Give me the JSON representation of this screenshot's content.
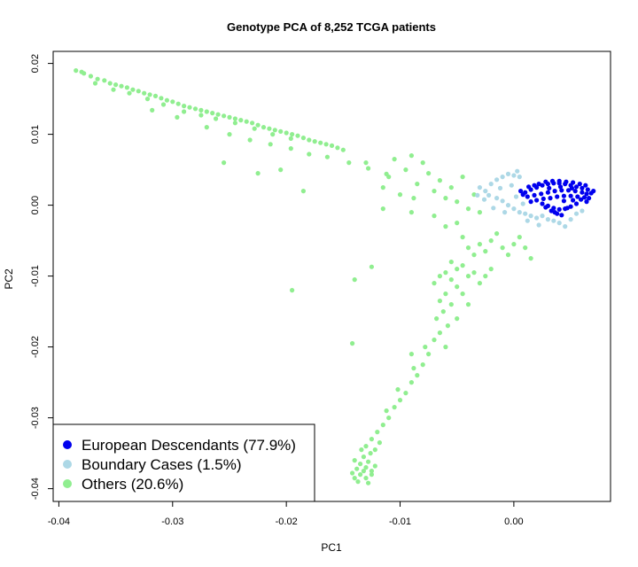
{
  "chart_data": {
    "type": "scatter",
    "title": "Genotype PCA of 8,252 TCGA patients",
    "xlabel": "PC1",
    "ylabel": "PC2",
    "xlim": [
      -0.0405,
      0.0085
    ],
    "ylim": [
      -0.0418,
      0.0217
    ],
    "x_ticks": [
      -0.04,
      -0.03,
      -0.02,
      -0.01,
      0.0
    ],
    "x_tick_labels": [
      "-0.04",
      "-0.03",
      "-0.02",
      "-0.01",
      "0.00"
    ],
    "y_ticks": [
      -0.04,
      -0.03,
      -0.02,
      -0.01,
      0.0,
      0.01,
      0.02
    ],
    "y_tick_labels": [
      "-0.04",
      "-0.03",
      "-0.02",
      "-0.01",
      "0.00",
      "0.01",
      "0.02"
    ],
    "grid": false,
    "legend_position": "bottom-left",
    "series": [
      {
        "name": "European Descendants (77.9%)",
        "color": "#0000EE",
        "points": [
          [
            0.001,
            0.0018
          ],
          [
            0.0015,
            0.0022
          ],
          [
            0.002,
            0.0025
          ],
          [
            0.0025,
            0.0028
          ],
          [
            0.003,
            0.003
          ],
          [
            0.0035,
            0.0031
          ],
          [
            0.004,
            0.0031
          ],
          [
            0.0045,
            0.003
          ],
          [
            0.005,
            0.0028
          ],
          [
            0.0055,
            0.0026
          ],
          [
            0.006,
            0.0024
          ],
          [
            0.0065,
            0.0022
          ],
          [
            0.0012,
            0.0012
          ],
          [
            0.0018,
            0.0014
          ],
          [
            0.0024,
            0.0016
          ],
          [
            0.003,
            0.0018
          ],
          [
            0.0036,
            0.002
          ],
          [
            0.0042,
            0.0021
          ],
          [
            0.0048,
            0.0021
          ],
          [
            0.0054,
            0.002
          ],
          [
            0.006,
            0.0018
          ],
          [
            0.0064,
            0.0016
          ],
          [
            0.0068,
            0.0017
          ],
          [
            0.007,
            0.002
          ],
          [
            0.0015,
            0.0005
          ],
          [
            0.002,
            0.0007
          ],
          [
            0.0026,
            0.0009
          ],
          [
            0.0032,
            0.001
          ],
          [
            0.0038,
            0.0012
          ],
          [
            0.0044,
            0.0013
          ],
          [
            0.005,
            0.0013
          ],
          [
            0.0056,
            0.0012
          ],
          [
            0.0062,
            0.0011
          ],
          [
            0.0066,
            0.001
          ],
          [
            0.0008,
            0.0015
          ],
          [
            0.0006,
            0.002
          ],
          [
            0.0025,
            0.0002
          ],
          [
            0.003,
            -0.0001
          ],
          [
            0.0035,
            -0.0004
          ],
          [
            0.004,
            -0.0006
          ],
          [
            0.0045,
            -0.0005
          ],
          [
            0.005,
            -0.0002
          ],
          [
            0.0055,
            0.0002
          ],
          [
            0.0033,
            -0.0008
          ],
          [
            0.0038,
            -0.0012
          ],
          [
            0.0042,
            -0.0014
          ],
          [
            0.0036,
            -0.001
          ],
          [
            0.0028,
            -0.0003
          ],
          [
            0.0022,
            0.003
          ],
          [
            0.0028,
            0.0033
          ],
          [
            0.0034,
            0.0034
          ],
          [
            0.004,
            0.0034
          ],
          [
            0.0046,
            0.0033
          ],
          [
            0.0052,
            0.0032
          ],
          [
            0.0058,
            0.003
          ],
          [
            0.0063,
            0.0028
          ],
          [
            0.0018,
            0.0028
          ],
          [
            0.0013,
            0.0026
          ],
          [
            0.0044,
            0.0006
          ],
          [
            0.0052,
            0.0007
          ],
          [
            0.0059,
            0.0008
          ],
          [
            0.0064,
            0.0005
          ],
          [
            0.0047,
            -0.0004
          ],
          [
            0.0031,
            0.0024
          ],
          [
            0.0041,
            0.0026
          ],
          [
            0.0051,
            0.0024
          ]
        ]
      },
      {
        "name": "Boundary Cases (1.5%)",
        "color": "#ADD8E6",
        "points": [
          [
            -0.0025,
            0.002
          ],
          [
            -0.002,
            0.003
          ],
          [
            -0.0015,
            0.0036
          ],
          [
            -0.001,
            0.004
          ],
          [
            -0.0005,
            0.0044
          ],
          [
            0.0,
            0.0042
          ],
          [
            0.0005,
            0.004
          ],
          [
            -0.003,
            0.0025
          ],
          [
            -0.0022,
            0.0014
          ],
          [
            -0.0015,
            0.001
          ],
          [
            -0.001,
            0.0006
          ],
          [
            -0.0005,
            0.0
          ],
          [
            0.0,
            -0.0005
          ],
          [
            0.0005,
            -0.001
          ],
          [
            0.001,
            -0.0012
          ],
          [
            0.0015,
            -0.0015
          ],
          [
            0.002,
            -0.0018
          ],
          [
            0.0025,
            -0.0015
          ],
          [
            0.003,
            -0.002
          ],
          [
            0.0035,
            -0.0022
          ],
          [
            0.004,
            -0.0025
          ],
          [
            0.0045,
            -0.003
          ],
          [
            0.005,
            -0.002
          ],
          [
            0.0055,
            -0.0012
          ],
          [
            0.006,
            -0.0008
          ],
          [
            -0.0012,
            0.0024
          ],
          [
            -0.0002,
            0.0028
          ],
          [
            0.0002,
            0.0012
          ],
          [
            -0.0018,
            -0.0004
          ],
          [
            -0.0008,
            -0.001
          ],
          [
            0.0008,
            0.0002
          ],
          [
            -0.0026,
            0.0008
          ],
          [
            0.0012,
            -0.0022
          ],
          [
            0.0022,
            -0.0028
          ],
          [
            0.0003,
            0.0048
          ],
          [
            -0.0032,
            0.0014
          ]
        ]
      },
      {
        "name": "Others (20.6%)",
        "color": "#90EE90",
        "points": [
          [
            -0.0385,
            0.019
          ],
          [
            -0.038,
            0.0188
          ],
          [
            -0.0378,
            0.0186
          ],
          [
            -0.0372,
            0.0182
          ],
          [
            -0.0366,
            0.0178
          ],
          [
            -0.036,
            0.0176
          ],
          [
            -0.0355,
            0.0172
          ],
          [
            -0.035,
            0.017
          ],
          [
            -0.0345,
            0.0168
          ],
          [
            -0.034,
            0.0166
          ],
          [
            -0.0335,
            0.0163
          ],
          [
            -0.033,
            0.0161
          ],
          [
            -0.0325,
            0.0158
          ],
          [
            -0.032,
            0.0156
          ],
          [
            -0.0315,
            0.0154
          ],
          [
            -0.031,
            0.0151
          ],
          [
            -0.0305,
            0.0148
          ],
          [
            -0.03,
            0.0146
          ],
          [
            -0.0295,
            0.0143
          ],
          [
            -0.029,
            0.014
          ],
          [
            -0.0285,
            0.0138
          ],
          [
            -0.028,
            0.0136
          ],
          [
            -0.0275,
            0.0134
          ],
          [
            -0.027,
            0.0132
          ],
          [
            -0.0265,
            0.013
          ],
          [
            -0.026,
            0.0128
          ],
          [
            -0.0255,
            0.0126
          ],
          [
            -0.025,
            0.0124
          ],
          [
            -0.0245,
            0.0122
          ],
          [
            -0.024,
            0.012
          ],
          [
            -0.0235,
            0.0118
          ],
          [
            -0.023,
            0.0116
          ],
          [
            -0.0225,
            0.0113
          ],
          [
            -0.022,
            0.011
          ],
          [
            -0.0215,
            0.0108
          ],
          [
            -0.021,
            0.0106
          ],
          [
            -0.0205,
            0.0104
          ],
          [
            -0.02,
            0.0102
          ],
          [
            -0.0195,
            0.01
          ],
          [
            -0.019,
            0.0098
          ],
          [
            -0.0185,
            0.0095
          ],
          [
            -0.018,
            0.0092
          ],
          [
            -0.0175,
            0.009
          ],
          [
            -0.017,
            0.0088
          ],
          [
            -0.0165,
            0.0086
          ],
          [
            -0.016,
            0.0084
          ],
          [
            -0.0155,
            0.0081
          ],
          [
            -0.015,
            0.0078
          ],
          [
            -0.0368,
            0.0172
          ],
          [
            -0.0352,
            0.0163
          ],
          [
            -0.0338,
            0.0158
          ],
          [
            -0.0322,
            0.015
          ],
          [
            -0.0308,
            0.0142
          ],
          [
            -0.029,
            0.0132
          ],
          [
            -0.0275,
            0.0127
          ],
          [
            -0.0262,
            0.0122
          ],
          [
            -0.0245,
            0.0116
          ],
          [
            -0.0228,
            0.0108
          ],
          [
            -0.0212,
            0.01
          ],
          [
            -0.0196,
            0.0094
          ],
          [
            -0.0318,
            0.0134
          ],
          [
            -0.0296,
            0.0124
          ],
          [
            -0.027,
            0.011
          ],
          [
            -0.025,
            0.01
          ],
          [
            -0.0232,
            0.0092
          ],
          [
            -0.0214,
            0.0086
          ],
          [
            -0.0196,
            0.008
          ],
          [
            -0.018,
            0.0072
          ],
          [
            -0.0164,
            0.0068
          ],
          [
            -0.0145,
            0.006
          ],
          [
            -0.0128,
            0.0052
          ],
          [
            -0.0112,
            0.0044
          ],
          [
            -0.0205,
            0.005
          ],
          [
            -0.0225,
            0.0045
          ],
          [
            -0.0255,
            0.006
          ],
          [
            -0.0185,
            0.002
          ],
          [
            -0.0195,
            -0.012
          ],
          [
            -0.014,
            -0.0105
          ],
          [
            -0.0125,
            -0.0087
          ],
          [
            -0.013,
            0.006
          ],
          [
            -0.011,
            0.004
          ],
          [
            -0.0095,
            0.005
          ],
          [
            -0.0085,
            0.003
          ],
          [
            -0.0075,
            0.0045
          ],
          [
            -0.007,
            0.002
          ],
          [
            -0.0065,
            0.0035
          ],
          [
            -0.006,
            0.001
          ],
          [
            -0.0055,
            0.0025
          ],
          [
            -0.005,
            0.0005
          ],
          [
            -0.0045,
            0.004
          ],
          [
            -0.004,
            -0.0005
          ],
          [
            -0.0035,
            0.0015
          ],
          [
            -0.003,
            -0.001
          ],
          [
            -0.0105,
            0.0065
          ],
          [
            -0.009,
            0.007
          ],
          [
            -0.008,
            0.006
          ],
          [
            -0.0115,
            0.0025
          ],
          [
            -0.01,
            0.0015
          ],
          [
            -0.0088,
            0.001
          ],
          [
            -0.0115,
            -0.0005
          ],
          [
            -0.009,
            -0.001
          ],
          [
            -0.007,
            -0.0015
          ],
          [
            -0.006,
            -0.003
          ],
          [
            -0.005,
            -0.0025
          ],
          [
            -0.0045,
            -0.0045
          ],
          [
            -0.004,
            -0.006
          ],
          [
            -0.0035,
            -0.007
          ],
          [
            -0.003,
            -0.0055
          ],
          [
            -0.0025,
            -0.0065
          ],
          [
            -0.002,
            -0.005
          ],
          [
            -0.0015,
            -0.004
          ],
          [
            -0.001,
            -0.006
          ],
          [
            -0.0005,
            -0.007
          ],
          [
            0.0,
            -0.0055
          ],
          [
            0.0005,
            -0.0045
          ],
          [
            0.001,
            -0.006
          ],
          [
            0.0015,
            -0.0075
          ],
          [
            -0.0055,
            -0.008
          ],
          [
            -0.005,
            -0.009
          ],
          [
            -0.0045,
            -0.0085
          ],
          [
            -0.006,
            -0.0095
          ],
          [
            -0.0055,
            -0.0105
          ],
          [
            -0.005,
            -0.0115
          ],
          [
            -0.006,
            -0.0125
          ],
          [
            -0.0065,
            -0.0135
          ],
          [
            -0.007,
            -0.011
          ],
          [
            -0.0065,
            -0.01
          ],
          [
            -0.004,
            -0.01
          ],
          [
            -0.0035,
            -0.0095
          ],
          [
            -0.0045,
            -0.0125
          ],
          [
            -0.0055,
            -0.014
          ],
          [
            -0.0062,
            -0.015
          ],
          [
            -0.0068,
            -0.016
          ],
          [
            -0.005,
            -0.016
          ],
          [
            -0.004,
            -0.014
          ],
          [
            -0.003,
            -0.011
          ],
          [
            -0.0058,
            -0.017
          ],
          [
            -0.0065,
            -0.018
          ],
          [
            -0.007,
            -0.019
          ],
          [
            -0.006,
            -0.02
          ],
          [
            -0.0075,
            -0.021
          ],
          [
            -0.008,
            -0.0225
          ],
          [
            -0.0085,
            -0.024
          ],
          [
            -0.009,
            -0.025
          ],
          [
            -0.0095,
            -0.0265
          ],
          [
            -0.01,
            -0.0275
          ],
          [
            -0.0105,
            -0.0285
          ],
          [
            -0.011,
            -0.03
          ],
          [
            -0.0115,
            -0.031
          ],
          [
            -0.012,
            -0.032
          ],
          [
            -0.0118,
            -0.0335
          ],
          [
            -0.0122,
            -0.0345
          ],
          [
            -0.0078,
            -0.02
          ],
          [
            -0.0088,
            -0.023
          ],
          [
            -0.0102,
            -0.026
          ],
          [
            -0.0112,
            -0.029
          ],
          [
            -0.009,
            -0.021
          ],
          [
            -0.013,
            -0.034
          ],
          [
            -0.0125,
            -0.033
          ],
          [
            -0.0142,
            -0.0195
          ],
          [
            -0.002,
            -0.009
          ],
          [
            -0.0025,
            -0.01
          ],
          [
            -0.014,
            -0.036
          ],
          [
            -0.0135,
            -0.0365
          ],
          [
            -0.013,
            -0.037
          ],
          [
            -0.0125,
            -0.0375
          ],
          [
            -0.0135,
            -0.038
          ],
          [
            -0.014,
            -0.0385
          ],
          [
            -0.013,
            -0.0385
          ],
          [
            -0.0125,
            -0.038
          ],
          [
            -0.0132,
            -0.0375
          ],
          [
            -0.0138,
            -0.0372
          ],
          [
            -0.0128,
            -0.0362
          ],
          [
            -0.0132,
            -0.0355
          ],
          [
            -0.0137,
            -0.039
          ],
          [
            -0.0128,
            -0.0392
          ],
          [
            -0.0122,
            -0.0368
          ],
          [
            -0.0142,
            -0.0378
          ],
          [
            -0.0126,
            -0.035
          ],
          [
            -0.0134,
            -0.0345
          ]
        ]
      }
    ]
  }
}
